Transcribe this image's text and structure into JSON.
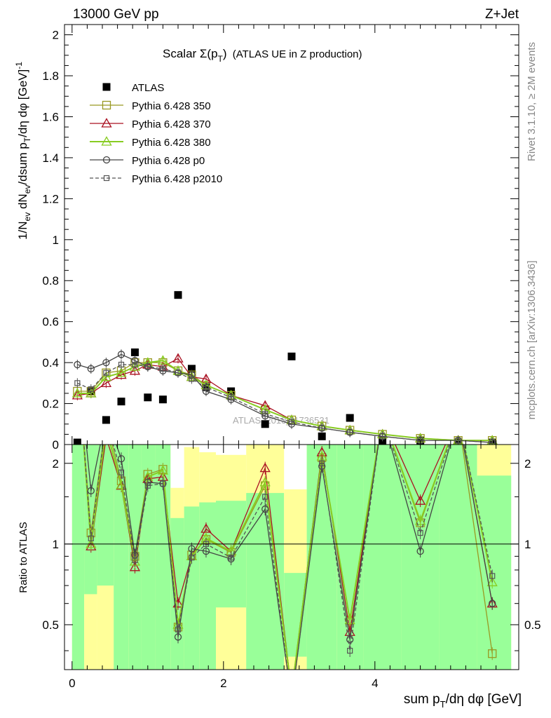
{
  "header": {
    "left": "13000 GeV pp",
    "right": "Z+Jet",
    "side_top": "Rivet 3.1.10, ≥ 2M events",
    "side_bottom": "mcplots.cern.ch [arXiv:1306.3436]",
    "watermark": "ATLAS_2013_I1736531"
  },
  "chart_data": [
    {
      "panel": "main",
      "type": "scatter",
      "title": "Scalar Σ(p_T) (ATLAS UE in Z production)",
      "ylabel": "1/N_ev dN_ev/dsum p_T/dη dφ [GeV]^-1",
      "xlim": [
        -0.1,
        5.9
      ],
      "ylim": [
        0,
        2.05
      ],
      "yticks": [
        "0",
        "0.2",
        "0.4",
        "0.6",
        "0.8",
        "1",
        "1.2",
        "1.4",
        "1.6",
        "1.8",
        "2"
      ],
      "legend_position": "top-left",
      "series": [
        {
          "name": "ATLAS",
          "color": "#000000",
          "marker": "square-filled",
          "x": [
            0.07,
            0.25,
            0.45,
            0.65,
            0.83,
            1.0,
            1.2,
            1.4,
            1.58,
            1.77,
            2.1,
            2.55,
            2.9,
            3.3,
            3.67,
            4.1,
            4.6,
            5.1,
            5.55
          ],
          "y": [
            0.01,
            0.26,
            0.12,
            0.21,
            0.45,
            0.23,
            0.22,
            0.73,
            0.37,
            0.28,
            0.26,
            0.1,
            0.43,
            0.04,
            0.13,
            0.02,
            0.02,
            0.01,
            0.01
          ]
        },
        {
          "name": "Pythia 6.428 350",
          "color": "#999922",
          "marker": "square-open",
          "line": "solid",
          "x": [
            0.07,
            0.25,
            0.45,
            0.65,
            0.83,
            1.0,
            1.2,
            1.4,
            1.58,
            1.77,
            2.1,
            2.55,
            2.9,
            3.3,
            3.67,
            4.1,
            4.6,
            5.1,
            5.55
          ],
          "y": [
            0.26,
            0.26,
            0.35,
            0.36,
            0.4,
            0.4,
            0.4,
            0.36,
            0.34,
            0.29,
            0.24,
            0.17,
            0.12,
            0.09,
            0.07,
            0.05,
            0.03,
            0.02,
            0.02
          ]
        },
        {
          "name": "Pythia 6.428 370",
          "color": "#aa1122",
          "marker": "triangle-open",
          "line": "solid",
          "x": [
            0.07,
            0.25,
            0.45,
            0.65,
            0.83,
            1.0,
            1.2,
            1.4,
            1.58,
            1.77,
            2.1,
            2.55,
            2.9,
            3.3,
            3.67,
            4.1,
            4.6,
            5.1,
            5.55
          ],
          "y": [
            0.24,
            0.25,
            0.3,
            0.34,
            0.36,
            0.39,
            0.38,
            0.42,
            0.33,
            0.32,
            0.24,
            0.19,
            0.12,
            0.09,
            0.07,
            0.05,
            0.03,
            0.02,
            0.02
          ]
        },
        {
          "name": "Pythia 6.428 380",
          "color": "#88cc22",
          "marker": "triangle-open",
          "line": "solid",
          "x": [
            0.07,
            0.25,
            0.45,
            0.65,
            0.83,
            1.0,
            1.2,
            1.4,
            1.58,
            1.77,
            2.1,
            2.55,
            2.9,
            3.3,
            3.67,
            4.1,
            4.6,
            5.1,
            5.55
          ],
          "y": [
            0.25,
            0.25,
            0.33,
            0.35,
            0.38,
            0.4,
            0.41,
            0.36,
            0.33,
            0.29,
            0.24,
            0.17,
            0.12,
            0.09,
            0.07,
            0.05,
            0.03,
            0.02,
            0.02
          ]
        },
        {
          "name": "Pythia 6.428 p0",
          "color": "#444444",
          "marker": "circle-open",
          "line": "solid",
          "x": [
            0.07,
            0.25,
            0.45,
            0.65,
            0.83,
            1.0,
            1.2,
            1.4,
            1.58,
            1.77,
            2.1,
            2.55,
            2.9,
            3.3,
            3.67,
            4.1,
            4.6,
            5.1,
            5.55
          ],
          "y": [
            0.39,
            0.37,
            0.4,
            0.44,
            0.41,
            0.38,
            0.36,
            0.35,
            0.34,
            0.26,
            0.22,
            0.14,
            0.1,
            0.08,
            0.06,
            0.04,
            0.02,
            0.02,
            0.01
          ]
        },
        {
          "name": "Pythia 6.428 p2010",
          "color": "#555555",
          "marker": "square-open-small",
          "line": "dashed",
          "x": [
            0.07,
            0.25,
            0.45,
            0.65,
            0.83,
            1.0,
            1.2,
            1.4,
            1.58,
            1.77,
            2.1,
            2.55,
            2.9,
            3.3,
            3.67,
            4.1,
            4.6,
            5.1,
            5.55
          ],
          "y": [
            0.3,
            0.27,
            0.35,
            0.39,
            0.39,
            0.38,
            0.37,
            0.35,
            0.32,
            0.28,
            0.23,
            0.15,
            0.11,
            0.08,
            0.06,
            0.04,
            0.02,
            0.02,
            0.01
          ]
        }
      ]
    },
    {
      "panel": "ratio",
      "type": "line",
      "ylabel": "Ratio to ATLAS",
      "xlabel": "sum p_T/dη dφ [GeV]",
      "xlim": [
        -0.1,
        5.9
      ],
      "ylim": [
        0.34,
        2.35
      ],
      "yscale": "log",
      "xticks": [
        "0",
        "2",
        "4"
      ],
      "yticks": [
        "0.5",
        "1",
        "2"
      ],
      "reference_line": 1,
      "bands": {
        "edges": [
          0.0,
          0.16,
          0.33,
          0.55,
          0.75,
          0.91,
          1.1,
          1.3,
          1.48,
          1.68,
          1.9,
          2.3,
          2.8,
          3.1,
          3.5,
          3.85,
          4.35,
          4.85,
          5.35,
          5.8
        ],
        "inner": [
          [
            0.3,
            2.5
          ],
          [
            0.65,
            2.5
          ],
          [
            0.7,
            2.5
          ],
          [
            0.3,
            2.5
          ],
          [
            0.3,
            2.5
          ],
          [
            0.3,
            2.5
          ],
          [
            0.3,
            2.5
          ],
          [
            0.3,
            1.25
          ],
          [
            0.3,
            1.38
          ],
          [
            0.3,
            1.43
          ],
          [
            0.58,
            1.45
          ],
          [
            0.3,
            1.55
          ],
          [
            0.38,
            0.78
          ],
          [
            0.3,
            2.5
          ],
          [
            0.3,
            2.5
          ],
          [
            0.3,
            2.5
          ],
          [
            0.3,
            2.5
          ],
          [
            0.3,
            2.5
          ],
          [
            0.3,
            1.8
          ]
        ],
        "outer": [
          [
            0.3,
            2.5
          ],
          [
            0.3,
            2.5
          ],
          [
            0.3,
            2.5
          ],
          [
            0.3,
            2.5
          ],
          [
            0.3,
            2.5
          ],
          [
            0.3,
            2.5
          ],
          [
            0.3,
            2.5
          ],
          [
            0.3,
            1.62
          ],
          [
            0.3,
            2.3
          ],
          [
            0.3,
            2.2
          ],
          [
            0.3,
            2.15
          ],
          [
            0.3,
            2.5
          ],
          [
            0.3,
            1.6
          ],
          [
            0.3,
            2.5
          ],
          [
            0.3,
            2.5
          ],
          [
            0.3,
            2.5
          ],
          [
            0.3,
            2.5
          ],
          [
            0.3,
            2.5
          ],
          [
            0.3,
            2.5
          ]
        ],
        "inner_color": "#99ff99",
        "outer_color": "#ffff99"
      },
      "series": [
        {
          "name": "Pythia 6.428 350",
          "color": "#999922",
          "x": [
            0.07,
            0.25,
            0.45,
            0.65,
            0.83,
            1.0,
            1.2,
            1.4,
            1.58,
            1.77,
            2.1,
            2.55,
            2.9,
            3.3,
            3.67,
            4.1,
            4.6,
            5.1,
            5.55
          ],
          "y": [
            5.0,
            1.1,
            2.9,
            1.72,
            0.9,
            1.82,
            1.9,
            0.49,
            0.91,
            1.04,
            0.93,
            1.65,
            0.28,
            2.1,
            0.52,
            3.0,
            1.2,
            3.0,
            0.39
          ]
        },
        {
          "name": "Pythia 6.428 370",
          "color": "#aa1122",
          "x": [
            0.07,
            0.25,
            0.45,
            0.65,
            0.83,
            1.0,
            1.2,
            1.4,
            1.58,
            1.77,
            2.1,
            2.55,
            2.9,
            3.3,
            3.67,
            4.1,
            4.6,
            5.1,
            5.55
          ],
          "y": [
            5.0,
            0.98,
            2.5,
            1.65,
            0.82,
            1.75,
            1.78,
            0.6,
            0.9,
            1.14,
            0.94,
            1.92,
            0.28,
            2.2,
            0.47,
            3.0,
            1.45,
            3.0,
            0.6
          ]
        },
        {
          "name": "Pythia 6.428 380",
          "color": "#88cc22",
          "x": [
            0.07,
            0.25,
            0.45,
            0.65,
            0.83,
            1.0,
            1.2,
            1.4,
            1.58,
            1.77,
            2.1,
            2.55,
            2.9,
            3.3,
            3.67,
            4.1,
            4.6,
            5.1,
            5.55
          ],
          "y": [
            5.0,
            1.0,
            2.7,
            1.66,
            0.86,
            1.78,
            1.88,
            0.5,
            0.9,
            1.05,
            0.94,
            1.7,
            0.28,
            2.12,
            0.52,
            3.0,
            1.22,
            3.0,
            0.72
          ]
        },
        {
          "name": "Pythia 6.428 p0",
          "color": "#444444",
          "x": [
            0.07,
            0.25,
            0.45,
            0.65,
            0.83,
            1.0,
            1.2,
            1.4,
            1.58,
            1.77,
            2.1,
            2.55,
            2.9,
            3.3,
            3.67,
            4.1,
            4.6,
            5.1,
            5.55
          ],
          "y": [
            5.0,
            1.58,
            3.0,
            2.08,
            0.91,
            1.7,
            1.68,
            0.45,
            0.96,
            0.94,
            0.88,
            1.35,
            0.26,
            1.95,
            0.44,
            3.0,
            0.94,
            3.0,
            0.6
          ]
        },
        {
          "name": "Pythia 6.428 p2010",
          "color": "#555555",
          "x": [
            0.07,
            0.25,
            0.45,
            0.65,
            0.83,
            1.0,
            1.2,
            1.4,
            1.58,
            1.77,
            2.1,
            2.55,
            2.9,
            3.3,
            3.67,
            4.1,
            4.6,
            5.1,
            5.55
          ],
          "y": [
            5.0,
            1.05,
            2.9,
            1.85,
            0.87,
            1.65,
            1.68,
            0.48,
            0.89,
            1.0,
            0.89,
            1.5,
            0.26,
            2.0,
            0.4,
            3.0,
            1.1,
            3.0,
            0.76
          ]
        }
      ]
    }
  ]
}
